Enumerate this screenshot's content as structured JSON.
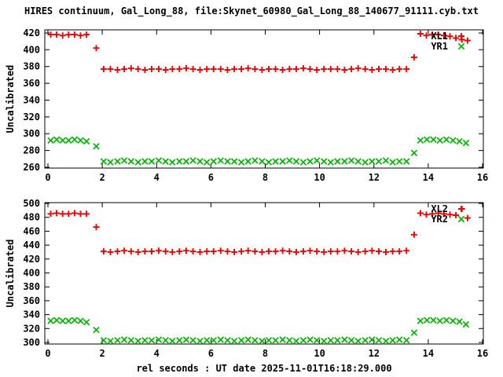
{
  "title": "HIRES continuum, Gal_Long_88, file:Skynet_60980_Gal_Long_88_140677_91111.cyb.txt",
  "xlabel": "rel seconds : UT date 2025-11-01T16:18:29.000",
  "ylabel": "Uncalibrated",
  "colors": {
    "xl_series": "#ee0000",
    "yr_series": "#00b400",
    "text": "#000000",
    "background": "#ffffff"
  },
  "chart_data": {
    "type": "scatter",
    "title": "HIRES continuum, Gal_Long_88, file:Skynet_60980_Gal_Long_88_140677_91111.cyb.txt",
    "xlabel": "rel seconds : UT date 2025-11-01T16:18:29.000",
    "ylabel": "Uncalibrated",
    "grid": false,
    "legend_position": "top-right-inside",
    "xlim": [
      0,
      16
    ],
    "xticks": [
      0,
      2,
      4,
      6,
      8,
      10,
      12,
      14,
      16
    ],
    "panels": [
      {
        "name": "top",
        "ylim": [
          260,
          420
        ],
        "yticks": [
          260,
          280,
          300,
          320,
          340,
          360,
          380,
          400,
          420
        ],
        "series": [
          {
            "name": "XL1",
            "marker": "plus",
            "color": "#ee0000",
            "x": [
              0.1,
              0.32,
              0.54,
              0.76,
              0.98,
              1.2,
              1.42,
              1.78,
              2.05,
              2.3,
              2.56,
              2.81,
              3.06,
              3.32,
              3.57,
              3.82,
              4.08,
              4.33,
              4.58,
              4.84,
              5.09,
              5.34,
              5.6,
              5.85,
              6.1,
              6.36,
              6.61,
              6.86,
              7.12,
              7.37,
              7.62,
              7.88,
              8.13,
              8.38,
              8.64,
              8.89,
              9.14,
              9.4,
              9.65,
              9.9,
              10.16,
              10.41,
              10.66,
              10.92,
              11.17,
              11.42,
              11.68,
              11.93,
              12.18,
              12.44,
              12.69,
              12.94,
              13.2,
              13.48,
              13.71,
              13.93,
              14.15,
              14.37,
              14.58,
              14.8,
              15.02,
              15.24,
              15.45
            ],
            "y": [
              418,
              418,
              417,
              418,
              418,
              417,
              418,
              402,
              377,
              377,
              376,
              377,
              378,
              377,
              376,
              377,
              377,
              376,
              377,
              377,
              378,
              377,
              376,
              377,
              377,
              377,
              376,
              377,
              377,
              378,
              377,
              376,
              377,
              377,
              376,
              377,
              377,
              378,
              377,
              376,
              377,
              377,
              377,
              376,
              377,
              378,
              377,
              376,
              377,
              377,
              376,
              377,
              377,
              391,
              419,
              417,
              418,
              418,
              417,
              416,
              414,
              412,
              411
            ]
          },
          {
            "name": "YR1",
            "marker": "cross",
            "color": "#00b400",
            "x": [
              0.1,
              0.32,
              0.54,
              0.76,
              0.98,
              1.2,
              1.42,
              1.78,
              2.05,
              2.3,
              2.56,
              2.81,
              3.06,
              3.32,
              3.57,
              3.82,
              4.08,
              4.33,
              4.58,
              4.84,
              5.09,
              5.34,
              5.6,
              5.85,
              6.1,
              6.36,
              6.61,
              6.86,
              7.12,
              7.37,
              7.62,
              7.88,
              8.13,
              8.38,
              8.64,
              8.89,
              9.14,
              9.4,
              9.65,
              9.9,
              10.16,
              10.41,
              10.66,
              10.92,
              11.17,
              11.42,
              11.68,
              11.93,
              12.18,
              12.44,
              12.69,
              12.94,
              13.2,
              13.48,
              13.71,
              13.95,
              14.19,
              14.43,
              14.67,
              14.91,
              15.15,
              15.39
            ],
            "y": [
              292,
              293,
              292,
              292,
              293,
              292,
              291,
              285,
              267,
              266,
              267,
              268,
              267,
              266,
              267,
              267,
              268,
              267,
              266,
              267,
              267,
              268,
              267,
              266,
              267,
              268,
              267,
              267,
              266,
              267,
              268,
              267,
              266,
              267,
              267,
              268,
              267,
              266,
              267,
              268,
              267,
              266,
              267,
              267,
              268,
              267,
              266,
              267,
              267,
              268,
              266,
              267,
              267,
              277,
              292,
              293,
              293,
              292,
              293,
              292,
              291,
              289
            ]
          }
        ]
      },
      {
        "name": "bottom",
        "ylim": [
          300,
          500
        ],
        "yticks": [
          300,
          320,
          340,
          360,
          380,
          400,
          420,
          440,
          460,
          480,
          500
        ],
        "series": [
          {
            "name": "XL2",
            "marker": "plus",
            "color": "#ee0000",
            "x": [
              0.1,
              0.32,
              0.54,
              0.76,
              0.98,
              1.2,
              1.42,
              1.78,
              2.05,
              2.3,
              2.56,
              2.81,
              3.06,
              3.32,
              3.57,
              3.82,
              4.08,
              4.33,
              4.58,
              4.84,
              5.09,
              5.34,
              5.6,
              5.85,
              6.1,
              6.36,
              6.61,
              6.86,
              7.12,
              7.37,
              7.62,
              7.88,
              8.13,
              8.38,
              8.64,
              8.89,
              9.14,
              9.4,
              9.65,
              9.9,
              10.16,
              10.41,
              10.66,
              10.92,
              11.17,
              11.42,
              11.68,
              11.93,
              12.18,
              12.44,
              12.69,
              12.94,
              13.2,
              13.48,
              13.71,
              13.93,
              14.15,
              14.37,
              14.58,
              14.8,
              15.02,
              15.24,
              15.45
            ],
            "y": [
              485,
              486,
              485,
              485,
              486,
              485,
              485,
              466,
              431,
              430,
              431,
              432,
              431,
              430,
              431,
              431,
              432,
              431,
              430,
              431,
              432,
              431,
              430,
              431,
              431,
              432,
              431,
              430,
              431,
              432,
              431,
              430,
              431,
              431,
              432,
              431,
              430,
              431,
              432,
              431,
              430,
              431,
              431,
              432,
              431,
              430,
              431,
              432,
              431,
              430,
              431,
              431,
              432,
              455,
              486,
              484,
              485,
              486,
              485,
              484,
              483,
              492,
              479
            ]
          },
          {
            "name": "YR2",
            "marker": "cross",
            "color": "#00b400",
            "x": [
              0.1,
              0.32,
              0.54,
              0.76,
              0.98,
              1.2,
              1.42,
              1.78,
              2.05,
              2.3,
              2.56,
              2.81,
              3.06,
              3.32,
              3.57,
              3.82,
              4.08,
              4.33,
              4.58,
              4.84,
              5.09,
              5.34,
              5.6,
              5.85,
              6.1,
              6.36,
              6.61,
              6.86,
              7.12,
              7.37,
              7.62,
              7.88,
              8.13,
              8.38,
              8.64,
              8.89,
              9.14,
              9.4,
              9.65,
              9.9,
              10.16,
              10.41,
              10.66,
              10.92,
              11.17,
              11.42,
              11.68,
              11.93,
              12.18,
              12.44,
              12.69,
              12.94,
              13.2,
              13.48,
              13.71,
              13.95,
              14.19,
              14.43,
              14.67,
              14.91,
              15.15,
              15.39
            ],
            "y": [
              331,
              332,
              331,
              331,
              332,
              331,
              329,
              318,
              303,
              302,
              303,
              304,
              303,
              302,
              303,
              303,
              304,
              303,
              302,
              303,
              304,
              303,
              302,
              303,
              303,
              304,
              303,
              302,
              303,
              304,
              303,
              302,
              303,
              303,
              304,
              303,
              302,
              303,
              304,
              303,
              302,
              303,
              303,
              304,
              303,
              302,
              303,
              304,
              303,
              302,
              303,
              304,
              303,
              314,
              331,
              332,
              332,
              331,
              332,
              331,
              330,
              326
            ]
          }
        ]
      }
    ]
  }
}
